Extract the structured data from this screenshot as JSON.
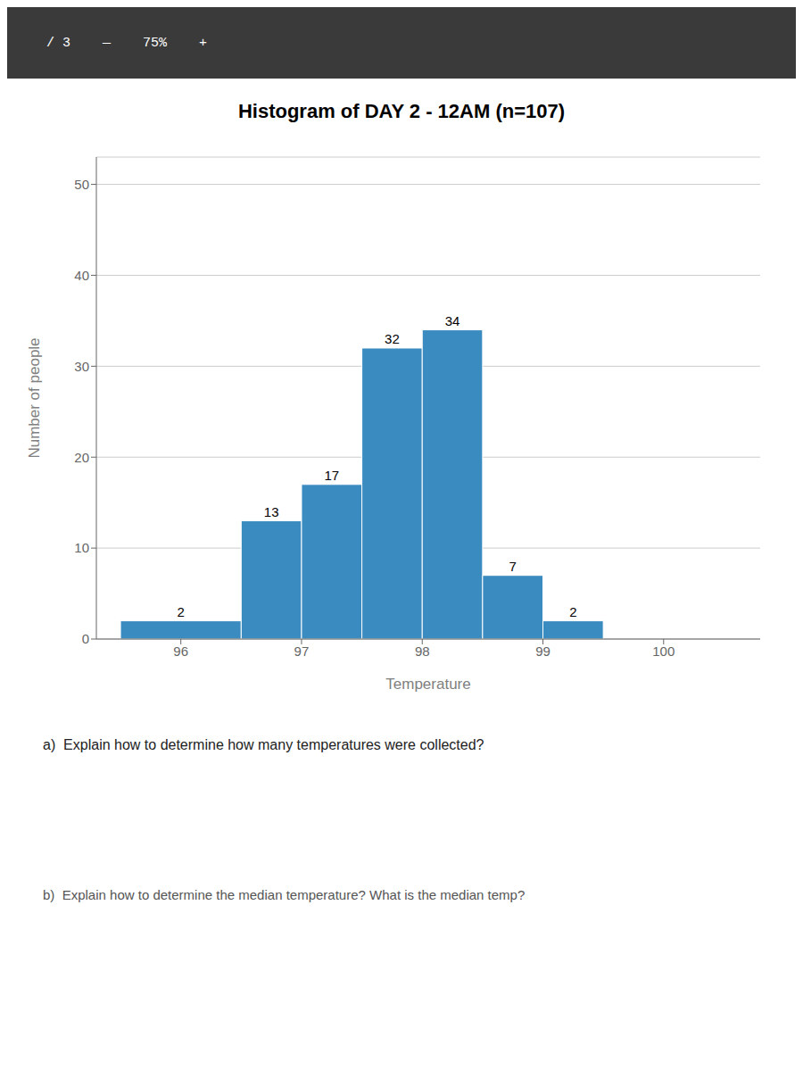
{
  "chart_data": {
    "type": "histogram",
    "title": "Histogram of DAY 2 - 12AM (n=107)",
    "xlabel": "Temperature",
    "ylabel": "Number of people",
    "bins": [
      95.5,
      96.5,
      97.0,
      97.5,
      98.0,
      98.5,
      99.0,
      99.5
    ],
    "values": [
      2,
      13,
      17,
      32,
      34,
      7,
      2
    ],
    "color": "#3a8bbf",
    "xlim": [
      95.3,
      100.8
    ],
    "xticks": [
      96,
      97,
      98,
      99,
      100
    ],
    "ylim": [
      0,
      53
    ],
    "yticks": [
      0,
      10,
      20,
      30,
      40,
      50
    ],
    "grid": true,
    "data_labels": true,
    "annotations": [
      "/ 3    —    75%    +",
      "a)  Explain how to determine how many temperatures were collected?",
      "b)  Explain how to determine the median temperature? What is the median temp?"
    ]
  }
}
